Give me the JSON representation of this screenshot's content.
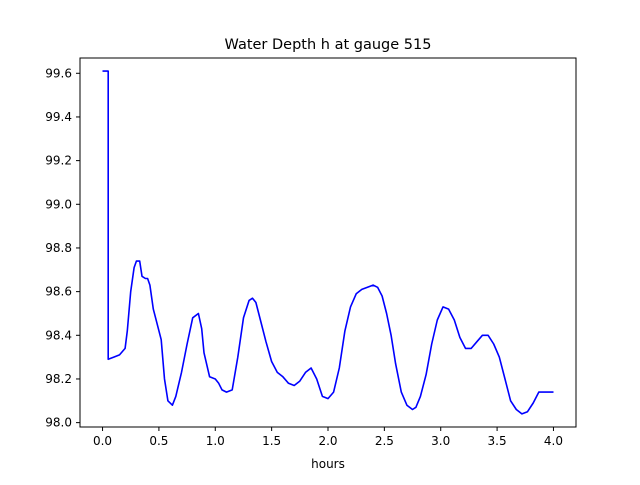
{
  "chart_data": {
    "type": "line",
    "title": "Water Depth h at gauge 515",
    "xlabel": "hours",
    "ylabel": "",
    "xlim": [
      -0.2,
      4.2
    ],
    "ylim": [
      97.98,
      99.67
    ],
    "x_ticks": [
      0.0,
      0.5,
      1.0,
      1.5,
      2.0,
      2.5,
      3.0,
      3.5,
      4.0
    ],
    "x_tick_labels": [
      "0.0",
      "0.5",
      "1.0",
      "1.5",
      "2.0",
      "2.5",
      "3.0",
      "3.5",
      "4.0"
    ],
    "y_ticks": [
      98.0,
      98.2,
      98.4,
      98.6,
      98.8,
      99.0,
      99.2,
      99.4,
      99.6
    ],
    "y_tick_labels": [
      "98.0",
      "98.2",
      "98.4",
      "98.6",
      "98.8",
      "99.0",
      "99.2",
      "99.4",
      "99.6"
    ],
    "grid": false,
    "legend": "none",
    "line_color": "#0000ff",
    "series": [
      {
        "x": [
          0.0,
          0.05,
          0.05,
          0.1,
          0.15,
          0.2,
          0.22,
          0.25,
          0.28,
          0.3,
          0.33,
          0.35,
          0.38,
          0.4,
          0.42,
          0.45,
          0.48,
          0.52,
          0.55,
          0.58,
          0.62,
          0.65,
          0.7,
          0.75,
          0.8,
          0.85,
          0.88,
          0.9,
          0.95,
          1.0,
          1.03,
          1.06,
          1.1,
          1.15,
          1.2,
          1.25,
          1.3,
          1.33,
          1.36,
          1.4,
          1.45,
          1.5,
          1.55,
          1.6,
          1.65,
          1.7,
          1.75,
          1.8,
          1.85,
          1.9,
          1.95,
          2.0,
          2.05,
          2.1,
          2.15,
          2.2,
          2.25,
          2.3,
          2.35,
          2.4,
          2.44,
          2.48,
          2.52,
          2.56,
          2.6,
          2.65,
          2.7,
          2.75,
          2.78,
          2.82,
          2.87,
          2.92,
          2.97,
          3.02,
          3.07,
          3.12,
          3.17,
          3.22,
          3.27,
          3.32,
          3.37,
          3.42,
          3.47,
          3.52,
          3.57,
          3.62,
          3.67,
          3.72,
          3.77,
          3.82,
          3.87,
          3.92,
          3.97,
          4.0
        ],
        "y": [
          99.61,
          99.61,
          98.29,
          98.3,
          98.31,
          98.34,
          98.42,
          98.6,
          98.71,
          98.74,
          98.74,
          98.67,
          98.66,
          98.66,
          98.63,
          98.52,
          98.46,
          98.38,
          98.2,
          98.1,
          98.08,
          98.12,
          98.23,
          98.36,
          98.48,
          98.5,
          98.43,
          98.32,
          98.21,
          98.2,
          98.18,
          98.15,
          98.14,
          98.15,
          98.3,
          98.48,
          98.56,
          98.57,
          98.55,
          98.47,
          98.37,
          98.28,
          98.23,
          98.21,
          98.18,
          98.17,
          98.19,
          98.23,
          98.25,
          98.2,
          98.12,
          98.11,
          98.14,
          98.25,
          98.42,
          98.53,
          98.59,
          98.61,
          98.62,
          98.63,
          98.62,
          98.58,
          98.5,
          98.4,
          98.27,
          98.14,
          98.08,
          98.06,
          98.07,
          98.12,
          98.22,
          98.36,
          98.47,
          98.53,
          98.52,
          98.47,
          98.39,
          98.34,
          98.34,
          98.37,
          98.4,
          98.4,
          98.36,
          98.3,
          98.2,
          98.1,
          98.06,
          98.04,
          98.05,
          98.09,
          98.14,
          98.14,
          98.14,
          98.14
        ]
      }
    ]
  }
}
